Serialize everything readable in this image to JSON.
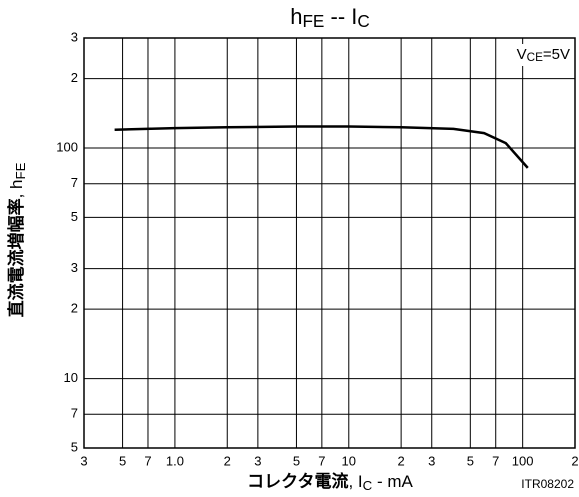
{
  "chart_data": {
    "type": "line",
    "title": [
      {
        "text": "h"
      },
      {
        "text": "FE",
        "subscript": true
      },
      {
        "text": " -- I"
      },
      {
        "text": "C",
        "subscript": true
      }
    ],
    "annotation": [
      {
        "text": "V"
      },
      {
        "text": "CE",
        "subscript": true
      },
      {
        "text": "=5V"
      }
    ],
    "y_label": [
      {
        "text": "直流電流増幅率",
        "bold": true
      },
      {
        "text": ", h"
      },
      {
        "text": "FE",
        "subscript": true
      }
    ],
    "x_label": [
      {
        "text": "コレクタ電流",
        "bold": true
      },
      {
        "text": ", I"
      },
      {
        "text": "C",
        "subscript": true
      },
      {
        "text": " - mA"
      }
    ],
    "footer": "ITR08202",
    "x": [
      0.45,
      1,
      2,
      5,
      10,
      20,
      40,
      60,
      80,
      107
    ],
    "values": [
      120,
      122,
      123,
      124,
      124,
      123,
      121,
      116,
      105,
      82
    ],
    "color": "#000000",
    "xlog": true,
    "ylog": true,
    "grid": true,
    "xlim": [
      0.3,
      200
    ],
    "xticks": [
      {
        "value": 0.3,
        "label": "3"
      },
      {
        "value": 0.5,
        "label": "5"
      },
      {
        "value": 0.7,
        "label": "7"
      },
      {
        "value": 1,
        "label": "1.0"
      },
      2,
      3,
      5,
      7,
      10,
      {
        "value": 20,
        "label": "2"
      },
      {
        "value": 30,
        "label": "3"
      },
      {
        "value": 50,
        "label": "5"
      },
      {
        "value": 70,
        "label": "7"
      },
      100,
      {
        "value": 200,
        "label": "2"
      }
    ],
    "ylim": [
      5,
      300
    ],
    "yticks": [
      5,
      7,
      10,
      {
        "value": 20,
        "label": "2"
      },
      {
        "value": 30,
        "label": "3"
      },
      {
        "value": 50,
        "label": "5"
      },
      {
        "value": 70,
        "label": "7"
      },
      100,
      {
        "value": 200,
        "label": "2"
      },
      {
        "value": 300,
        "label": "3"
      }
    ]
  }
}
